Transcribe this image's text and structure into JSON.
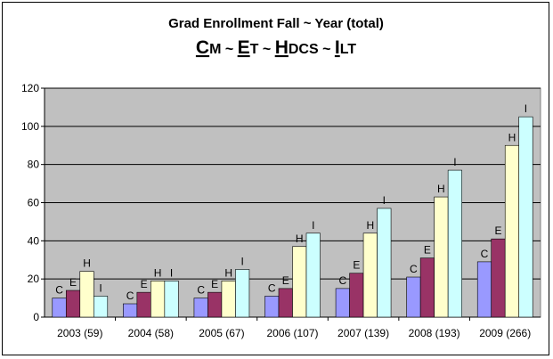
{
  "chart_data": {
    "type": "bar",
    "title": "Grad Enrollment Fall ~ Year (total)",
    "subtitle_parts": [
      {
        "big": "C",
        "small": "M"
      },
      {
        "sep": "~"
      },
      {
        "big": "E",
        "small": "T"
      },
      {
        "sep": "~"
      },
      {
        "big": "H",
        "small": "DCS"
      },
      {
        "sep": "~"
      },
      {
        "big": "I",
        "small": "LT"
      }
    ],
    "categories": [
      "2003 (59)",
      "2004 (58)",
      "2005 (67)",
      "2006 (107)",
      "2007 (139)",
      "2008 (193)",
      "2009 (266)"
    ],
    "series": [
      {
        "name": "C",
        "label": "C",
        "color": "#9999ff",
        "values": [
          10,
          7,
          10,
          11,
          15,
          21,
          29
        ]
      },
      {
        "name": "E",
        "label": "E",
        "color": "#993366",
        "values": [
          14,
          13,
          13,
          15,
          23,
          31,
          41
        ]
      },
      {
        "name": "H",
        "label": "H",
        "color": "#ffffcc",
        "values": [
          24,
          19,
          19,
          37,
          44,
          63,
          90
        ]
      },
      {
        "name": "I",
        "label": "I",
        "color": "#ccffff",
        "values": [
          11,
          19,
          25,
          44,
          57,
          77,
          105
        ]
      }
    ],
    "ylim": [
      0,
      120
    ],
    "yticks": [
      0,
      20,
      40,
      60,
      80,
      100,
      120
    ],
    "xlabel": "",
    "ylabel": "",
    "grid": true,
    "plot_background": "#c0c0c0"
  }
}
